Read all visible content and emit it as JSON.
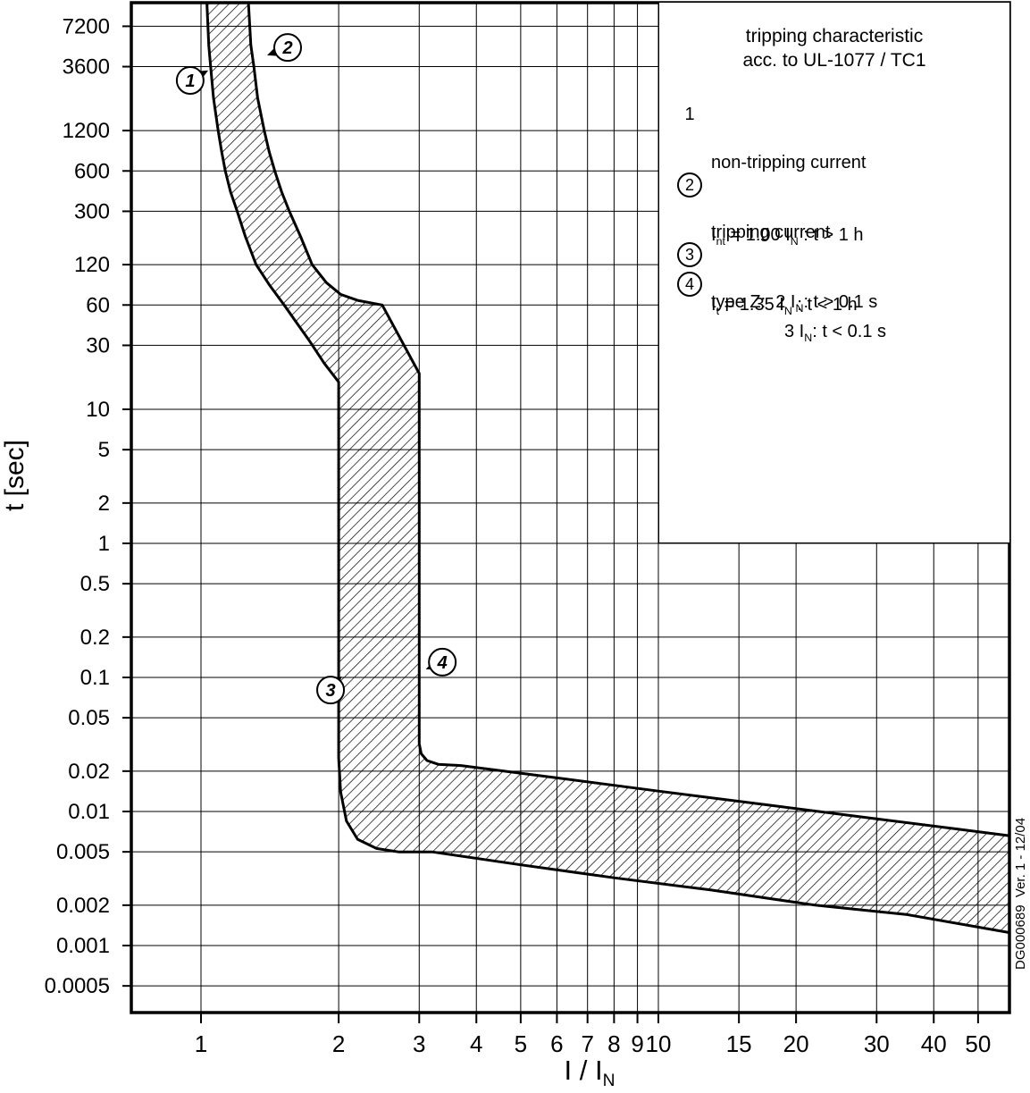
{
  "chart_data": {
    "type": "area",
    "title": "tripping characteristic acc. to UL-1077 / TC1",
    "xlabel": "I / I_N",
    "ylabel": "t [sec]",
    "x_scale": "log",
    "y_scale": "log",
    "xlim": [
      0.7,
      58.6
    ],
    "ylim": [
      0.000316,
      10800
    ],
    "grid": true,
    "legend_position": "top-right",
    "x_ticks": [
      "1",
      "2",
      "3",
      "4",
      "5",
      "6",
      "7",
      "8",
      "9",
      "10",
      "15",
      "20",
      "30",
      "40",
      "50"
    ],
    "y_ticks": [
      "7200",
      "3600",
      "1200",
      "600",
      "300",
      "120",
      "60",
      "30",
      "10",
      "5",
      "2",
      "1",
      "0.5",
      "0.2",
      "0.1",
      "0.05",
      "0.02",
      "0.01",
      "0.005",
      "0.002",
      "0.001",
      "0.0005"
    ],
    "xlabel_rich": [
      {
        "t": "I / I"
      },
      {
        "sub": "N"
      }
    ],
    "band": {
      "name": "tripping characteristic band (hatched region between non-tripping and tripping boundaries)",
      "non_tripping_boundary": [
        [
          1.03,
          10800
        ],
        [
          1.04,
          5200
        ],
        [
          1.05,
          3600
        ],
        [
          1.065,
          2100
        ],
        [
          1.09,
          1200
        ],
        [
          1.11,
          830
        ],
        [
          1.13,
          600
        ],
        [
          1.16,
          420
        ],
        [
          1.2,
          300
        ],
        [
          1.25,
          195
        ],
        [
          1.32,
          120
        ],
        [
          1.41,
          85
        ],
        [
          1.52,
          60
        ],
        [
          1.62,
          44
        ],
        [
          1.72,
          33
        ],
        [
          1.86,
          22
        ],
        [
          2.0,
          16
        ],
        [
          2.0,
          0.025
        ],
        [
          2.02,
          0.014
        ],
        [
          2.08,
          0.0085
        ],
        [
          2.2,
          0.0062
        ],
        [
          2.42,
          0.0053
        ],
        [
          2.7,
          0.005
        ],
        [
          3.2,
          0.005
        ],
        [
          5,
          0.004
        ],
        [
          8,
          0.0032
        ],
        [
          13,
          0.0026
        ],
        [
          22,
          0.002
        ],
        [
          35,
          0.0017
        ],
        [
          58.5,
          0.00125
        ]
      ],
      "tripping_boundary": [
        [
          1.27,
          10800
        ],
        [
          1.285,
          5200
        ],
        [
          1.305,
          3600
        ],
        [
          1.33,
          2100
        ],
        [
          1.375,
          1200
        ],
        [
          1.41,
          830
        ],
        [
          1.45,
          600
        ],
        [
          1.5,
          420
        ],
        [
          1.56,
          300
        ],
        [
          1.65,
          195
        ],
        [
          1.75,
          120
        ],
        [
          1.88,
          88
        ],
        [
          2.02,
          72
        ],
        [
          2.2,
          65
        ],
        [
          2.49,
          60
        ],
        [
          3.0,
          18.5
        ],
        [
          3.0,
          0.032
        ],
        [
          3.03,
          0.027
        ],
        [
          3.12,
          0.024
        ],
        [
          3.3,
          0.0225
        ],
        [
          3.7,
          0.022
        ],
        [
          6,
          0.0178
        ],
        [
          10,
          0.0142
        ],
        [
          18,
          0.011
        ],
        [
          30,
          0.0088
        ],
        [
          45,
          0.0074
        ],
        [
          58.5,
          0.0066
        ]
      ]
    },
    "annotations": [
      {
        "label": "1",
        "i": 0.947,
        "t": 2840,
        "tip_i": 1.037,
        "tip_t": 3380
      },
      {
        "label": "2",
        "i": 1.547,
        "t": 5000,
        "tip_i": 1.395,
        "tip_t": 4370
      },
      {
        "label": "3",
        "i": 1.92,
        "t": 0.0805,
        "tip_i": 2.03,
        "tip_t": 0.102
      },
      {
        "label": "4",
        "i": 3.37,
        "t": 0.13,
        "tip_i": 3.1,
        "tip_t": 0.115
      }
    ]
  },
  "legend": {
    "title_line1": "tripping characteristic",
    "title_line2": "acc. to UL-1077 / TC1",
    "items": [
      {
        "marker": "1",
        "line1": "non-tripping current",
        "line2": [
          {
            "t": "I"
          },
          {
            "sub": "nt"
          },
          {
            "t": " = 1.00 I"
          },
          {
            "sub": "N"
          },
          {
            "t": " : t > 1 h"
          }
        ]
      },
      {
        "marker": "2",
        "line1": "tripping current",
        "line2": [
          {
            "t": "I"
          },
          {
            "sub": "t"
          },
          {
            "t": " = 1.35 I"
          },
          {
            "sub": "N"
          },
          {
            "t": " : t < 1 h"
          }
        ]
      },
      {
        "marker": "3",
        "line1": [
          {
            "t": "type Z:  2 I"
          },
          {
            "sub": "N"
          },
          {
            "t": ": t > 0.1 s"
          }
        ]
      },
      {
        "marker": "4",
        "line1": [
          {
            "t": "3 I"
          },
          {
            "sub": "N"
          },
          {
            "t": ": t < 0.1 s"
          }
        ]
      }
    ]
  },
  "axes": {
    "ylabel": "t [sec]"
  },
  "watermark": "DG000689  Ver. 1 - 12/04"
}
